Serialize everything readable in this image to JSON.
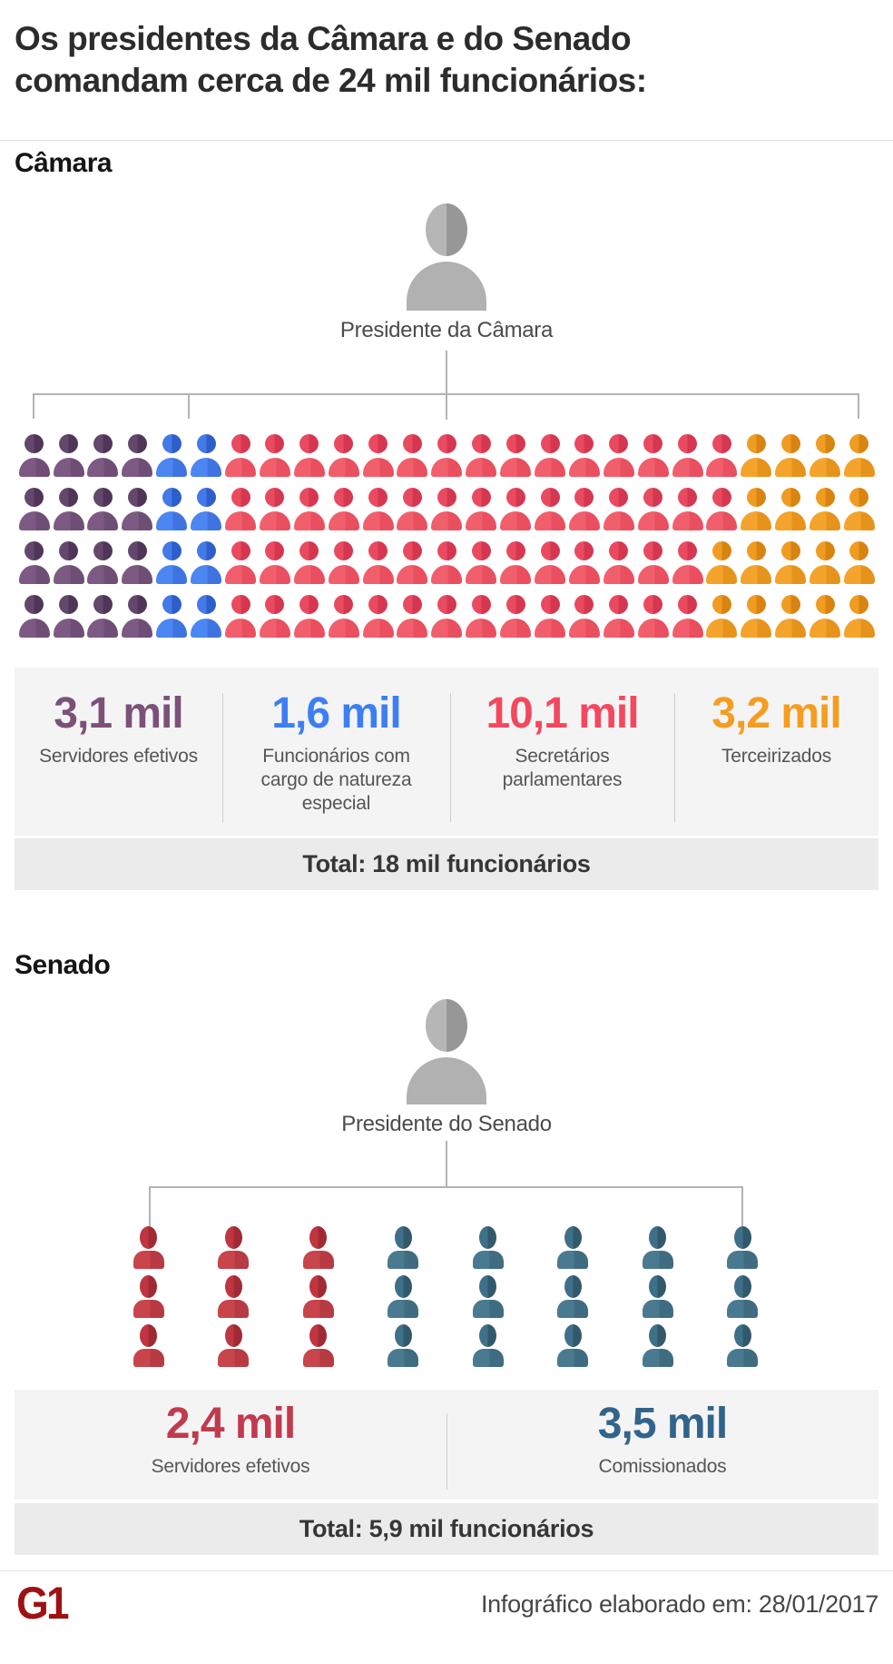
{
  "title": "Os presidentes da Câmara e do Senado\ncomandam cerca de 24 mil funcionários:",
  "president_icon_colors": {
    "headL": "#b6b6b6",
    "headR": "#979797",
    "body": "#b1b1b1"
  },
  "camara": {
    "heading": "Câmara",
    "president_label": "Presidente da Câmara",
    "total_label": "Total: 18 mil funcionários",
    "groups": [
      {
        "value": "3,1 mil",
        "label": "Servidores efetivos",
        "color": "#7b5178",
        "icons": {
          "headL": "#64486c",
          "headR": "#4f3658",
          "body": "#7d5a83",
          "bodyR": "#6f4e76"
        }
      },
      {
        "value": "1,6 mil",
        "label": "Funcionários com cargo de natureza especial",
        "color": "#3d7ef2",
        "icons": {
          "headL": "#4379e8",
          "headR": "#2e5ec9",
          "body": "#4b86f2",
          "bodyR": "#3f74e0"
        }
      },
      {
        "value": "10,1 mil",
        "label": "Secretários parlamentares",
        "color": "#f4485f",
        "icons": {
          "headL": "#ea4a60",
          "headR": "#d63750",
          "body": "#f25f6c",
          "bodyR": "#e94f5f"
        }
      },
      {
        "value": "3,2 mil",
        "label": "Terceirizados",
        "color": "#f59d20",
        "icons": {
          "headL": "#f09c22",
          "headR": "#d88410",
          "body": "#f4a42d",
          "bodyR": "#e6931c"
        }
      }
    ],
    "icon_rows": [
      [
        4,
        2,
        15,
        4
      ],
      [
        4,
        2,
        15,
        4
      ],
      [
        4,
        2,
        14,
        5
      ],
      [
        4,
        2,
        14,
        5
      ]
    ]
  },
  "senado": {
    "heading": "Senado",
    "president_label": "Presidente do Senado",
    "total_label": "Total: 5,9 mil funcionários",
    "groups": [
      {
        "value": "2,4 mil",
        "label": "Servidores efetivos",
        "color": "#c13a4e",
        "icons": {
          "headL": "#bf3540",
          "headR": "#a02a34",
          "body": "#c8454c",
          "bodyR": "#b83a42"
        }
      },
      {
        "value": "3,5 mil",
        "label": "Comissionados",
        "color": "#31648a",
        "icons": {
          "headL": "#3f7089",
          "headR": "#32586c",
          "body": "#4a7a90",
          "bodyR": "#3f6c81"
        }
      }
    ],
    "icon_rows": [
      [
        3,
        5
      ],
      [
        3,
        5
      ],
      [
        3,
        5
      ]
    ]
  },
  "footer": {
    "logo_text": "G1",
    "date_label": "Infográfico elaborado em: 28/01/2017"
  },
  "chart_data": [
    {
      "type": "pictogram",
      "title": "Câmara",
      "root": "Presidente da Câmara",
      "categories": [
        "Servidores efetivos",
        "Funcionários com cargo de natureza especial",
        "Secretários parlamentares",
        "Terceirizados"
      ],
      "values_mil": [
        3.1,
        1.6,
        10.1,
        3.2
      ],
      "icon_counts": [
        16,
        8,
        58,
        18
      ],
      "icon_grid": "25 columns x 4 rows",
      "total_mil": 18,
      "total_label": "Total: 18 mil funcionários"
    },
    {
      "type": "pictogram",
      "title": "Senado",
      "root": "Presidente do Senado",
      "categories": [
        "Servidores efetivos",
        "Comissionados"
      ],
      "values_mil": [
        2.4,
        3.5
      ],
      "icon_counts": [
        9,
        15
      ],
      "icon_grid": "8 columns x 3 rows",
      "total_mil": 5.9,
      "total_label": "Total: 5,9 mil funcionários"
    }
  ]
}
